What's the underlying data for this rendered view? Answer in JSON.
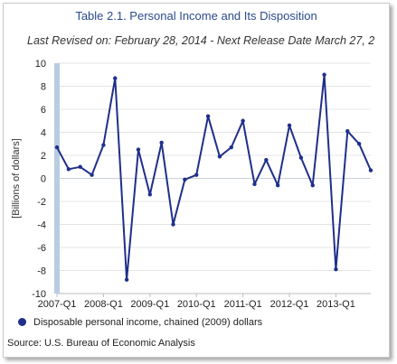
{
  "chart_data": {
    "type": "line",
    "title": "Table 2.1. Personal Income and Its Disposition",
    "subtitle": "Last Revised on: February 28, 2014 - Next Release Date March 27, 2",
    "ylabel": "[Billions of dollars]",
    "xlabel": "",
    "ylim": [
      -10,
      10
    ],
    "yticks": [
      10,
      8,
      6,
      4,
      2,
      0,
      -2,
      -4,
      -6,
      -8,
      -10
    ],
    "x_tick_labels": [
      "2007-Q1",
      "2008-Q1",
      "2009-Q1",
      "2010-Q1",
      "2011-Q1",
      "2012-Q1",
      "2013-Q1"
    ],
    "categories": [
      "2007-Q1",
      "2007-Q2",
      "2007-Q3",
      "2007-Q4",
      "2008-Q1",
      "2008-Q2",
      "2008-Q3",
      "2008-Q4",
      "2009-Q1",
      "2009-Q2",
      "2009-Q3",
      "2009-Q4",
      "2010-Q1",
      "2010-Q2",
      "2010-Q3",
      "2010-Q4",
      "2011-Q1",
      "2011-Q2",
      "2011-Q3",
      "2011-Q4",
      "2012-Q1",
      "2012-Q2",
      "2012-Q3",
      "2012-Q4",
      "2013-Q1",
      "2013-Q2",
      "2013-Q3",
      "2013-Q4"
    ],
    "series": [
      {
        "name": "Disposable personal income, chained (2009) dollars",
        "color": "#1f2f8a",
        "values": [
          2.7,
          0.8,
          1.0,
          0.3,
          2.9,
          8.7,
          -8.8,
          2.5,
          -1.4,
          3.1,
          -4.0,
          -0.1,
          0.3,
          5.4,
          1.9,
          2.7,
          5.0,
          -0.5,
          1.6,
          -0.6,
          4.6,
          1.8,
          -0.6,
          9.0,
          -7.9,
          4.1,
          3.0,
          0.7
        ]
      }
    ],
    "grid": "horizontal",
    "legend_position": "bottom-left",
    "source": "Source: U.S. Bureau of Economic Analysis"
  }
}
